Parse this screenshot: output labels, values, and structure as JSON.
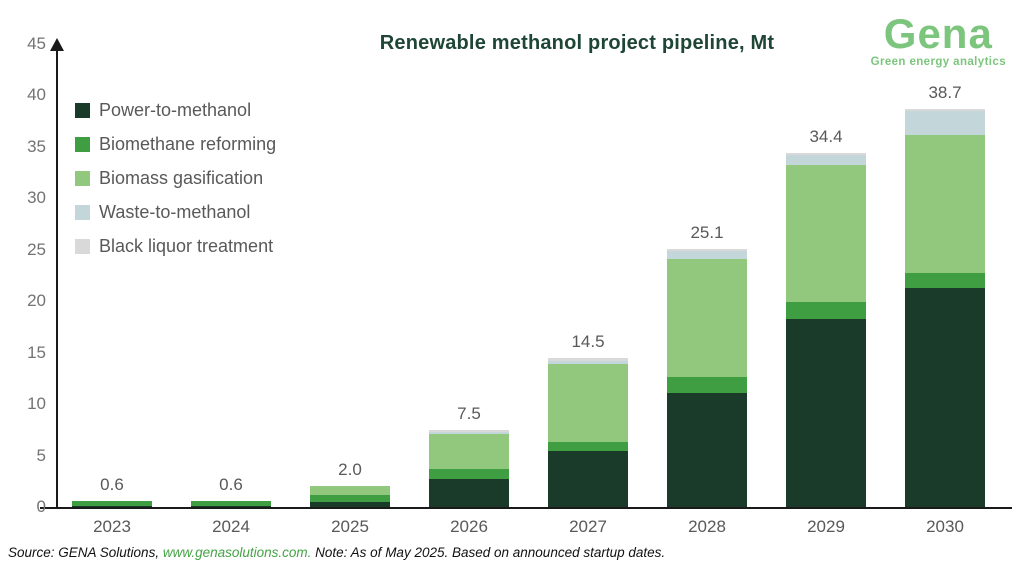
{
  "title": "Renewable methanol project pipeline, Mt",
  "logo": {
    "name": "Gena",
    "tagline": "Green energy analytics",
    "brand_color": "#7cc57d"
  },
  "source_note": {
    "prefix": "Source: GENA Solutions, ",
    "link": "www.genasolutions.com.",
    "suffix": " Note: As of May 2025. Based on announced startup dates."
  },
  "chart_data": {
    "type": "bar",
    "stacked": true,
    "title": "Renewable methanol project pipeline, Mt",
    "xlabel": "",
    "ylabel": "Mt",
    "ylim": [
      0,
      45
    ],
    "y_ticks": [
      0,
      5,
      10,
      15,
      20,
      25,
      30,
      35,
      40,
      45
    ],
    "grid": false,
    "legend_position": "top-left",
    "categories": [
      "2023",
      "2024",
      "2025",
      "2026",
      "2027",
      "2028",
      "2029",
      "2030"
    ],
    "series": [
      {
        "name": "Power-to-methanol",
        "color": "#1a3a2a",
        "values": [
          0.1,
          0.1,
          0.5,
          2.7,
          5.4,
          11.1,
          18.3,
          21.3
        ]
      },
      {
        "name": "Biomethane reforming",
        "color": "#3f9e41",
        "values": [
          0.5,
          0.5,
          0.7,
          1.0,
          0.9,
          1.5,
          1.6,
          1.4
        ]
      },
      {
        "name": "Biomass gasification",
        "color": "#92c77e",
        "values": [
          0.0,
          0.0,
          0.8,
          3.4,
          7.6,
          11.5,
          13.3,
          13.5
        ]
      },
      {
        "name": "Waste-to-methanol",
        "color": "#c3d7da",
        "values": [
          0.0,
          0.0,
          0.0,
          0.2,
          0.3,
          0.8,
          1.0,
          2.3
        ]
      },
      {
        "name": "Black liquor treatment",
        "color": "#d9d9d9",
        "values": [
          0.0,
          0.0,
          0.0,
          0.2,
          0.3,
          0.2,
          0.2,
          0.2
        ]
      }
    ],
    "totals": [
      "0.6",
      "0.6",
      "2.0",
      "7.5",
      "14.5",
      "25.1",
      "34.4",
      "38.7"
    ]
  }
}
